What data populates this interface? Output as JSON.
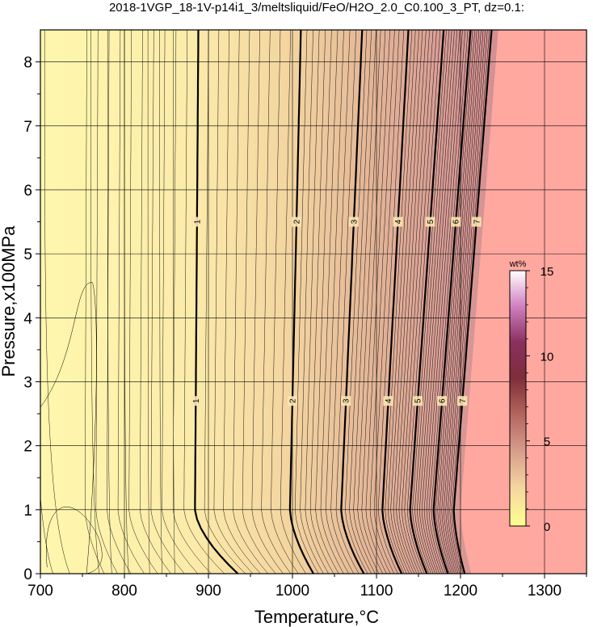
{
  "chart_data": {
    "type": "contour",
    "title": "2018-1VGP_18-1V-p14i1_3/meltsliquid/FeO/H2O_2.0_C0.100_3_PT, dz=0.1:",
    "xlabel": "Temperature,°C",
    "ylabel": "Pressure,x100MPa",
    "xlim": [
      700,
      1350
    ],
    "ylim": [
      0,
      8.5
    ],
    "x_ticks": [
      "700",
      "800",
      "900",
      "1000",
      "1100",
      "1200",
      "1300"
    ],
    "y_ticks": [
      "0",
      "1",
      "2",
      "3",
      "4",
      "5",
      "6",
      "7",
      "8"
    ],
    "grid": true,
    "major_contours": [
      {
        "label": "1",
        "t_at_p0": 935,
        "t_at_p1": 884,
        "t_at_p8_5": 888
      },
      {
        "label": "2",
        "t_at_p0": 1025,
        "t_at_p1": 997,
        "t_at_p8_5": 1010
      },
      {
        "label": "3",
        "t_at_p0": 1085,
        "t_at_p1": 1058,
        "t_at_p8_5": 1083
      },
      {
        "label": "4",
        "t_at_p0": 1130,
        "t_at_p1": 1107,
        "t_at_p8_5": 1138
      },
      {
        "label": "5",
        "t_at_p0": 1160,
        "t_at_p1": 1140,
        "t_at_p8_5": 1180
      },
      {
        "label": "6",
        "t_at_p0": 1185,
        "t_at_p1": 1168,
        "t_at_p8_5": 1212
      },
      {
        "label": "7",
        "t_at_p0": 1205,
        "t_at_p1": 1192,
        "t_at_p8_5": 1237
      }
    ],
    "contour_label_pressures": [
      2.7,
      5.5
    ],
    "minor_contour_step": 0.1,
    "liquidus_region_color": "#ffa8a0",
    "low_value_color": "#fff7ad",
    "colorbar": {
      "title": "wt%",
      "range": [
        0,
        15
      ],
      "ticks": [
        "0",
        "5",
        "10",
        "15"
      ]
    }
  }
}
